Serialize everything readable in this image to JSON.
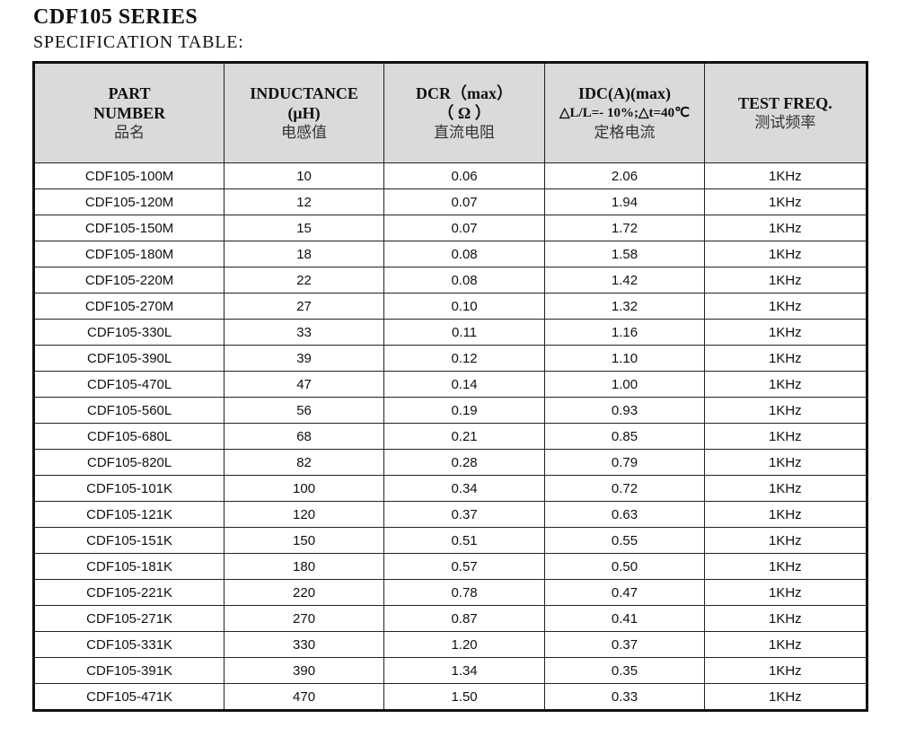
{
  "title": "CDF105  SERIES",
  "subtitle": "SPECIFICATION TABLE:",
  "headers": [
    {
      "l1": "PART",
      "l2": "NUMBER",
      "cn": "品名"
    },
    {
      "l1": "INDUCTANCE",
      "l2": "(μH)",
      "cn": "电感值"
    },
    {
      "l1": "DCR（max）",
      "l2": "（ Ω ）",
      "cn": "直流电阻"
    },
    {
      "l1": "IDC(A)(max)",
      "l2": "△L/L=- 10%;△t=40℃",
      "cn": "定格电流"
    },
    {
      "l1": "TEST FREQ.",
      "l2": "",
      "cn": "测试频率"
    }
  ],
  "rows": [
    [
      "CDF105-100M",
      "10",
      "0.06",
      "2.06",
      "1KHz"
    ],
    [
      "CDF105-120M",
      "12",
      "0.07",
      "1.94",
      "1KHz"
    ],
    [
      "CDF105-150M",
      "15",
      "0.07",
      "1.72",
      "1KHz"
    ],
    [
      "CDF105-180M",
      "18",
      "0.08",
      "1.58",
      "1KHz"
    ],
    [
      "CDF105-220M",
      "22",
      "0.08",
      "1.42",
      "1KHz"
    ],
    [
      "CDF105-270M",
      "27",
      "0.10",
      "1.32",
      "1KHz"
    ],
    [
      "CDF105-330L",
      "33",
      "0.11",
      "1.16",
      "1KHz"
    ],
    [
      "CDF105-390L",
      "39",
      "0.12",
      "1.10",
      "1KHz"
    ],
    [
      "CDF105-470L",
      "47",
      "0.14",
      "1.00",
      "1KHz"
    ],
    [
      "CDF105-560L",
      "56",
      "0.19",
      "0.93",
      "1KHz"
    ],
    [
      "CDF105-680L",
      "68",
      "0.21",
      "0.85",
      "1KHz"
    ],
    [
      "CDF105-820L",
      "82",
      "0.28",
      "0.79",
      "1KHz"
    ],
    [
      "CDF105-101K",
      "100",
      "0.34",
      "0.72",
      "1KHz"
    ],
    [
      "CDF105-121K",
      "120",
      "0.37",
      "0.63",
      "1KHz"
    ],
    [
      "CDF105-151K",
      "150",
      "0.51",
      "0.55",
      "1KHz"
    ],
    [
      "CDF105-181K",
      "180",
      "0.57",
      "0.50",
      "1KHz"
    ],
    [
      "CDF105-221K",
      "220",
      "0.78",
      "0.47",
      "1KHz"
    ],
    [
      "CDF105-271K",
      "270",
      "0.87",
      "0.41",
      "1KHz"
    ],
    [
      "CDF105-331K",
      "330",
      "1.20",
      "0.37",
      "1KHz"
    ],
    [
      "CDF105-391K",
      "390",
      "1.34",
      "0.35",
      "1KHz"
    ],
    [
      "CDF105-471K",
      "470",
      "1.50",
      "0.33",
      "1KHz"
    ]
  ]
}
